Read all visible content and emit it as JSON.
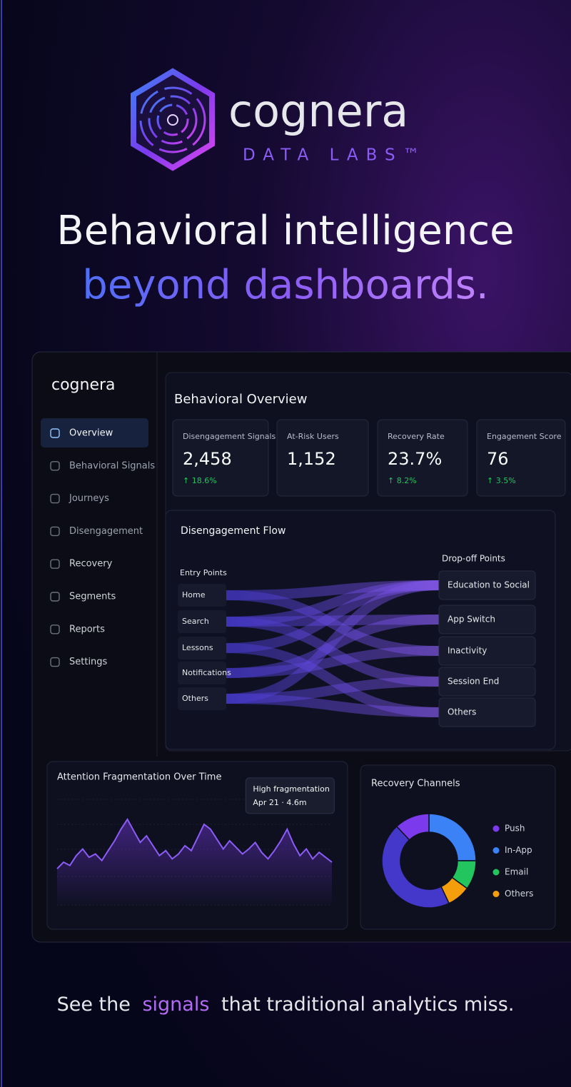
{
  "brand": {
    "name": "cognera",
    "tagline": "DATA LABS™"
  },
  "headline": {
    "line1": "Behavioral intelligence",
    "line2": "beyond dashboards."
  },
  "dashboard": {
    "sidebar": {
      "brand": "cognera",
      "nav": [
        "Overview",
        "Behavioral Signals",
        "Journeys",
        "Disengagement",
        "Recovery",
        "Segments",
        "Reports",
        "Settings"
      ],
      "active": 0
    },
    "title": "Behavioral Overview",
    "kpis": [
      {
        "label": "Disengagement Signals",
        "value": "2,458",
        "delta": "↑ 18.6%"
      },
      {
        "label": "At-Risk Users",
        "value": "1,152"
      },
      {
        "label": "Recovery Rate",
        "value": "23.7%",
        "delta": "↑ 8.2%"
      },
      {
        "label": "Engagement Score",
        "value": "76",
        "delta": "↑ 3.5%"
      }
    ],
    "flow": {
      "title": "Disengagement Flow",
      "entry_title": "Entry Points",
      "entries": [
        "Home",
        "Search",
        "Lessons",
        "Notifications",
        "Others"
      ],
      "dropoff_title": "Drop-off Points",
      "dropoffs": [
        "Education to Social",
        "App Switch",
        "Inactivity",
        "Session End",
        "Others"
      ]
    },
    "attention_chart": {
      "type": "line",
      "title": "Attention Fragmentation Over Time",
      "color": "#8b5cf6",
      "values": [
        2.2,
        2.6,
        2.4,
        3.0,
        3.4,
        2.9,
        3.1,
        2.7,
        3.3,
        3.9,
        4.6,
        5.2,
        4.5,
        3.8,
        4.2,
        3.6,
        3.0,
        3.3,
        2.8,
        3.1,
        3.6,
        3.3,
        4.1,
        4.9,
        4.6,
        4.0,
        3.4,
        3.9,
        3.5,
        3.1,
        3.4,
        3.8,
        3.2,
        2.8,
        3.3,
        3.9,
        4.6,
        3.7,
        3.0,
        3.4,
        2.8,
        3.2,
        2.9,
        2.6
      ],
      "annotation": {
        "index": 36,
        "title": "High fragmentation",
        "text": "Apr 21 · 4.6m"
      }
    },
    "recovery_channels": {
      "type": "pie",
      "title": "Recovery Channels",
      "series": [
        {
          "name": "Push",
          "color": "#7c3aed",
          "value": 12
        },
        {
          "name": "In-App",
          "color": "#3b82f6",
          "value": 25
        },
        {
          "name": "Email",
          "color": "#22c55e",
          "value": 10
        },
        {
          "name": "Others",
          "color": "#f59e0b",
          "value": 8
        }
      ],
      "rest_color": "#4338ca"
    }
  },
  "footer": {
    "before": "See the",
    "highlight": "signals",
    "after": "that traditional analytics miss."
  }
}
